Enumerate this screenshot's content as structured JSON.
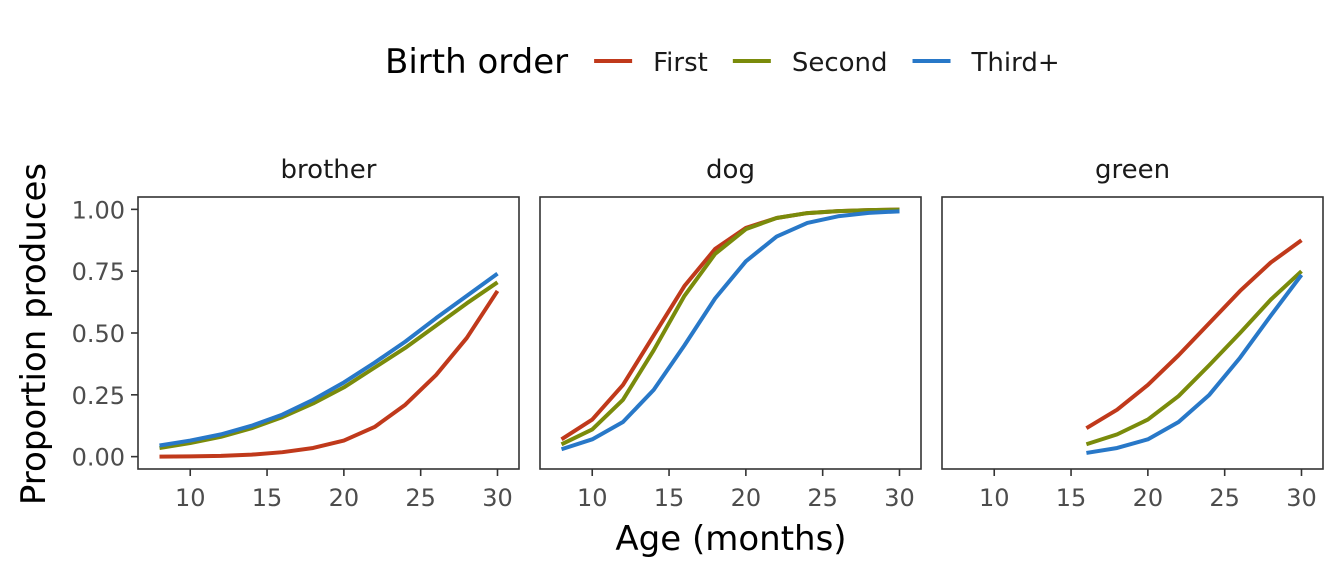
{
  "chart_data": {
    "type": "line",
    "facet_variable": "word",
    "legend": {
      "title": "Birth order",
      "position": "top",
      "entries": [
        {
          "name": "First",
          "color": "#C0391B"
        },
        {
          "name": "Second",
          "color": "#7A8B0B"
        },
        {
          "name": "Third+",
          "color": "#2878C8"
        }
      ]
    },
    "xlabel": "Age (months)",
    "ylabel": "Proportion produces",
    "xlim": [
      6.6,
      31.4
    ],
    "ylim": [
      -0.05,
      1.05
    ],
    "xticks": [
      10,
      15,
      20,
      25,
      30
    ],
    "yticks": [
      0,
      0.25,
      0.5,
      0.75,
      1
    ],
    "ytick_labels": [
      "0.00",
      "0.25",
      "0.50",
      "0.75",
      "1.00"
    ],
    "grid": false,
    "panels": [
      {
        "title": "brother",
        "series": [
          {
            "name": "First",
            "x": [
              8,
              10,
              12,
              14,
              16,
              18,
              20,
              22,
              24,
              26,
              28,
              30
            ],
            "y": [
              0.0,
              0.001,
              0.003,
              0.008,
              0.018,
              0.035,
              0.065,
              0.12,
              0.21,
              0.33,
              0.48,
              0.67
            ]
          },
          {
            "name": "Second",
            "x": [
              8,
              10,
              12,
              14,
              16,
              18,
              20,
              22,
              24,
              26,
              28,
              30
            ],
            "y": [
              0.035,
              0.055,
              0.08,
              0.115,
              0.16,
              0.215,
              0.28,
              0.36,
              0.44,
              0.53,
              0.62,
              0.705
            ]
          },
          {
            "name": "Third+",
            "x": [
              8,
              10,
              12,
              14,
              16,
              18,
              20,
              22,
              24,
              26,
              28,
              30
            ],
            "y": [
              0.045,
              0.065,
              0.09,
              0.125,
              0.17,
              0.23,
              0.3,
              0.38,
              0.465,
              0.56,
              0.65,
              0.74
            ]
          }
        ]
      },
      {
        "title": "dog",
        "series": [
          {
            "name": "First",
            "x": [
              8,
              10,
              12,
              14,
              16,
              18,
              20,
              22,
              24,
              26,
              28,
              30
            ],
            "y": [
              0.07,
              0.15,
              0.29,
              0.49,
              0.69,
              0.84,
              0.925,
              0.965,
              0.985,
              0.993,
              0.997,
              0.999
            ]
          },
          {
            "name": "Second",
            "x": [
              8,
              10,
              12,
              14,
              16,
              18,
              20,
              22,
              24,
              26,
              28,
              30
            ],
            "y": [
              0.05,
              0.11,
              0.23,
              0.43,
              0.65,
              0.82,
              0.92,
              0.965,
              0.985,
              0.993,
              0.997,
              0.999
            ]
          },
          {
            "name": "Third+",
            "x": [
              8,
              10,
              12,
              14,
              16,
              18,
              20,
              22,
              24,
              26,
              28,
              30
            ],
            "y": [
              0.03,
              0.07,
              0.14,
              0.27,
              0.45,
              0.64,
              0.79,
              0.89,
              0.945,
              0.972,
              0.986,
              0.992
            ]
          }
        ]
      },
      {
        "title": "green",
        "series": [
          {
            "name": "First",
            "x": [
              16,
              18,
              20,
              22,
              24,
              26,
              28,
              30
            ],
            "y": [
              0.115,
              0.19,
              0.29,
              0.41,
              0.54,
              0.67,
              0.785,
              0.875
            ]
          },
          {
            "name": "Second",
            "x": [
              16,
              18,
              20,
              22,
              24,
              26,
              28,
              30
            ],
            "y": [
              0.05,
              0.09,
              0.15,
              0.245,
              0.37,
              0.5,
              0.635,
              0.75
            ]
          },
          {
            "name": "Third+",
            "x": [
              16,
              18,
              20,
              22,
              24,
              26,
              28,
              30
            ],
            "y": [
              0.015,
              0.035,
              0.07,
              0.14,
              0.25,
              0.4,
              0.57,
              0.735
            ]
          }
        ]
      }
    ]
  }
}
